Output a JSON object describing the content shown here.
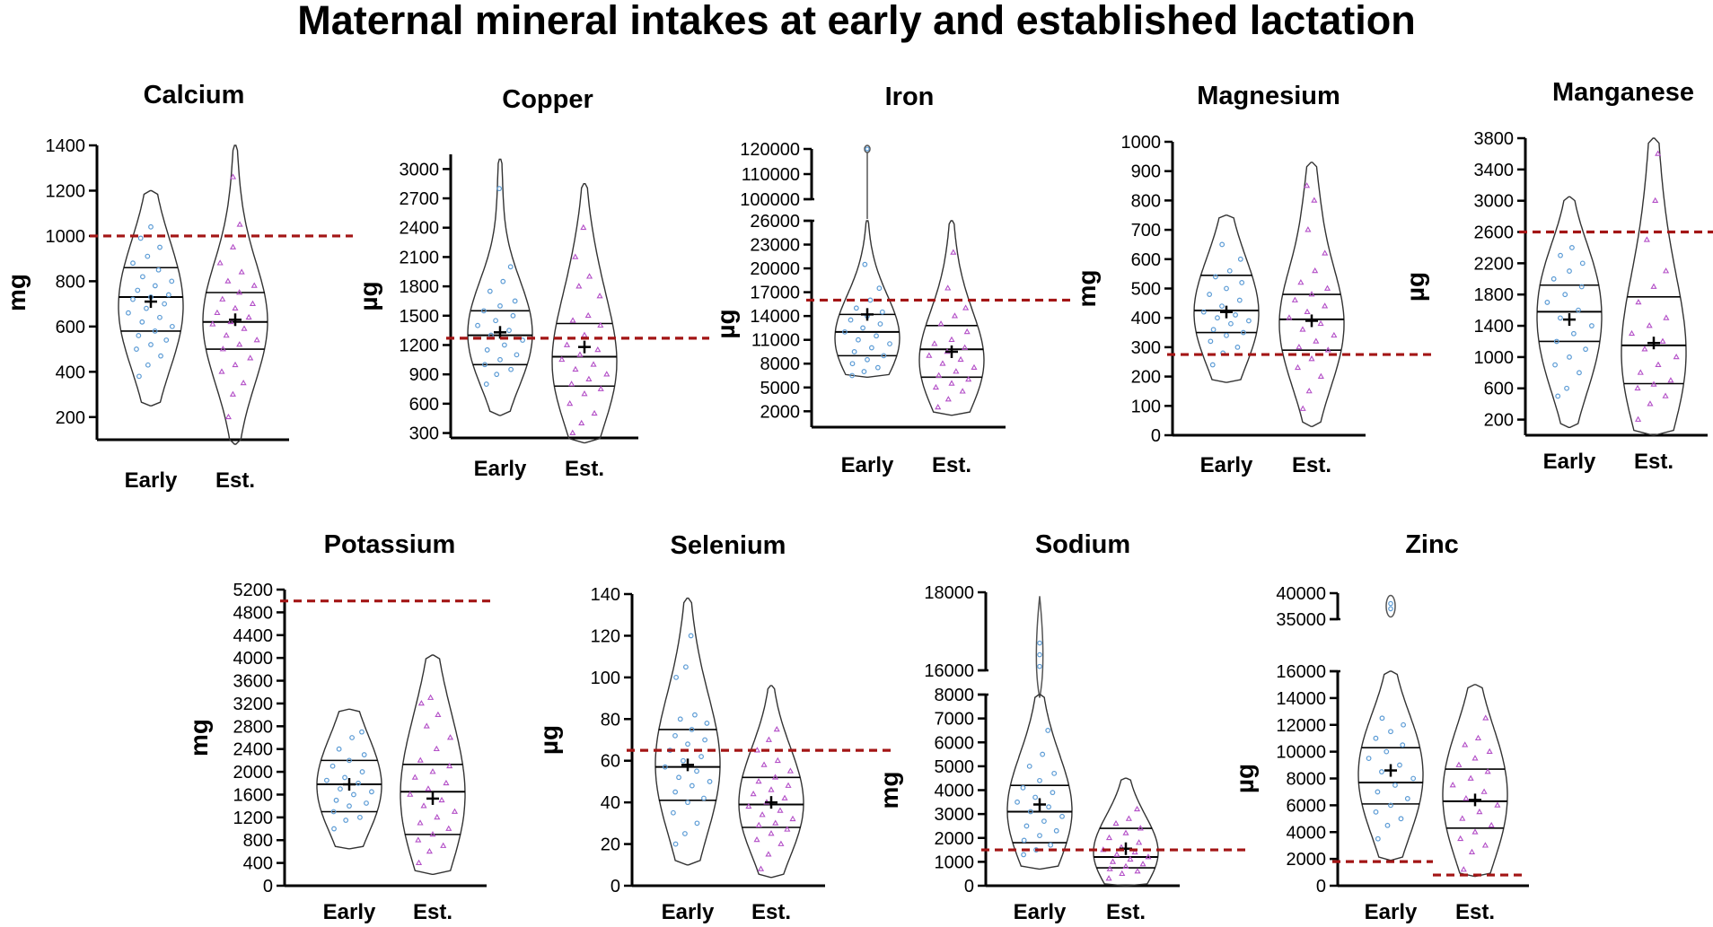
{
  "figure_title": "Maternal mineral intakes at early and established lactation",
  "colors": {
    "early_points": "#5b9bd5",
    "est_points": "#b34fc7",
    "reference_line": "#a31515",
    "axis": "#000000"
  },
  "chart_data": [
    {
      "type": "violin",
      "title": "Calcium",
      "ylabel": "mg",
      "categories": [
        "Early",
        "Est."
      ],
      "ylim": [
        100,
        1400
      ],
      "yticks": [
        200,
        400,
        600,
        800,
        1000,
        1200,
        1400
      ],
      "reference": 1000,
      "series": [
        {
          "name": "Early",
          "range": [
            250,
            1200
          ],
          "q1": 580,
          "median": 730,
          "q3": 860,
          "mean": 710,
          "points": [
            380,
            430,
            470,
            500,
            520,
            540,
            560,
            580,
            600,
            620,
            640,
            660,
            680,
            700,
            720,
            730,
            740,
            760,
            780,
            800,
            820,
            850,
            880,
            910,
            950,
            990,
            1040
          ]
        },
        {
          "name": "Est.",
          "range": [
            80,
            1400
          ],
          "q1": 500,
          "median": 620,
          "q3": 750,
          "mean": 630,
          "points": [
            200,
            300,
            350,
            400,
            430,
            460,
            500,
            520,
            540,
            560,
            590,
            610,
            620,
            640,
            660,
            680,
            700,
            720,
            750,
            780,
            800,
            840,
            880,
            950,
            1050,
            1260
          ]
        }
      ]
    },
    {
      "type": "violin",
      "title": "Copper",
      "ylabel": "µg",
      "categories": [
        "Early",
        "Est."
      ],
      "ylim": [
        250,
        3150
      ],
      "yticks": [
        300,
        600,
        900,
        1200,
        1500,
        1800,
        2100,
        2400,
        2700,
        3000
      ],
      "reference": 1270,
      "series": [
        {
          "name": "Early",
          "range": [
            480,
            3100
          ],
          "q1": 1000,
          "median": 1300,
          "q3": 1550,
          "mean": 1330,
          "points": [
            800,
            900,
            950,
            1000,
            1050,
            1100,
            1150,
            1200,
            1250,
            1300,
            1350,
            1400,
            1450,
            1500,
            1550,
            1600,
            1650,
            1750,
            1850,
            2000,
            2800
          ]
        },
        {
          "name": "Est.",
          "range": [
            200,
            2850
          ],
          "q1": 780,
          "median": 1080,
          "q3": 1420,
          "mean": 1180,
          "points": [
            300,
            400,
            500,
            600,
            700,
            750,
            800,
            850,
            900,
            950,
            1000,
            1050,
            1100,
            1150,
            1200,
            1300,
            1400,
            1450,
            1500,
            1700,
            1800,
            1900,
            2100,
            2400
          ]
        }
      ]
    },
    {
      "type": "violin",
      "title": "Iron",
      "ylabel": "µg",
      "categories": [
        "Early",
        "Est."
      ],
      "ylim": [
        0,
        26000
      ],
      "yticks": [
        2000,
        5000,
        8000,
        11000,
        14000,
        17000,
        20000,
        23000,
        26000
      ],
      "upper_ticks": [
        100000,
        110000,
        120000
      ],
      "reference": 16000,
      "series": [
        {
          "name": "Early",
          "range": [
            6300,
            26000
          ],
          "q1": 9000,
          "median": 12000,
          "q3": 14200,
          "mean": 14200,
          "points": [
            6500,
            7000,
            7500,
            8000,
            8500,
            9000,
            9500,
            10000,
            10500,
            11000,
            11500,
            12000,
            12500,
            13000,
            13500,
            14000,
            14500,
            15000,
            16000,
            17500,
            20500
          ]
        },
        {
          "name": "Est.",
          "range": [
            1500,
            26000
          ],
          "q1": 6300,
          "median": 9800,
          "q3": 12800,
          "mean": 9500,
          "points": [
            2500,
            3500,
            4500,
            5000,
            5500,
            6000,
            6500,
            7000,
            7500,
            8000,
            8500,
            9000,
            9500,
            10000,
            10500,
            11000,
            12000,
            13000,
            14000,
            15000,
            17500,
            22000
          ]
        }
      ]
    },
    {
      "type": "violin",
      "title": "Magnesium",
      "ylabel": "mg",
      "categories": [
        "Early",
        "Est."
      ],
      "ylim": [
        0,
        1000
      ],
      "yticks": [
        0,
        100,
        200,
        300,
        400,
        500,
        600,
        700,
        800,
        900,
        1000
      ],
      "reference": 275,
      "series": [
        {
          "name": "Early",
          "range": [
            180,
            750
          ],
          "q1": 350,
          "median": 425,
          "q3": 545,
          "mean": 420,
          "points": [
            240,
            280,
            300,
            320,
            340,
            350,
            360,
            380,
            390,
            400,
            410,
            420,
            440,
            460,
            480,
            500,
            520,
            540,
            560,
            600,
            650
          ]
        },
        {
          "name": "Est.",
          "range": [
            30,
            930
          ],
          "q1": 290,
          "median": 395,
          "q3": 480,
          "mean": 390,
          "points": [
            90,
            150,
            200,
            230,
            260,
            290,
            300,
            320,
            340,
            360,
            380,
            400,
            420,
            440,
            460,
            480,
            500,
            520,
            560,
            620,
            700,
            800,
            850
          ]
        }
      ]
    },
    {
      "type": "violin",
      "title": "Manganese",
      "ylabel": "µg",
      "categories": [
        "Early",
        "Est."
      ],
      "ylim": [
        0,
        3800
      ],
      "yticks": [
        200,
        600,
        1000,
        1400,
        1800,
        2200,
        2600,
        3000,
        3400,
        3800
      ],
      "reference": 2600,
      "series": [
        {
          "name": "Early",
          "range": [
            100,
            3050
          ],
          "q1": 1200,
          "median": 1580,
          "q3": 1920,
          "mean": 1480,
          "points": [
            500,
            600,
            800,
            900,
            1000,
            1100,
            1200,
            1300,
            1400,
            1500,
            1600,
            1700,
            1800,
            1900,
            2000,
            2100,
            2200,
            2300,
            2400
          ]
        },
        {
          "name": "Est.",
          "range": [
            0,
            3800
          ],
          "q1": 660,
          "median": 1150,
          "q3": 1770,
          "mean": 1180,
          "points": [
            200,
            400,
            500,
            600,
            650,
            700,
            800,
            900,
            1000,
            1100,
            1200,
            1300,
            1400,
            1500,
            1700,
            1900,
            2100,
            2500,
            3000,
            3600
          ]
        }
      ]
    },
    {
      "type": "violin",
      "title": "Potassium",
      "ylabel": "mg",
      "categories": [
        "Early",
        "Est."
      ],
      "ylim": [
        0,
        5200
      ],
      "yticks": [
        0,
        400,
        800,
        1200,
        1600,
        2000,
        2400,
        2800,
        3200,
        3600,
        4000,
        4400,
        4800,
        5200
      ],
      "reference": 5000,
      "series": [
        {
          "name": "Early",
          "range": [
            650,
            3100
          ],
          "q1": 1300,
          "median": 1780,
          "q3": 2200,
          "mean": 1780,
          "points": [
            1000,
            1150,
            1200,
            1300,
            1400,
            1450,
            1500,
            1600,
            1650,
            1700,
            1800,
            1850,
            1900,
            2000,
            2100,
            2200,
            2300,
            2400,
            2600,
            2700
          ]
        },
        {
          "name": "Est.",
          "range": [
            200,
            4050
          ],
          "q1": 900,
          "median": 1650,
          "q3": 2130,
          "mean": 1530,
          "points": [
            400,
            600,
            700,
            800,
            900,
            1000,
            1100,
            1200,
            1300,
            1400,
            1500,
            1600,
            1700,
            1800,
            1900,
            2000,
            2100,
            2200,
            2400,
            2600,
            2800,
            3000,
            3200,
            3300
          ]
        }
      ]
    },
    {
      "type": "violin",
      "title": "Selenium",
      "ylabel": "µg",
      "categories": [
        "Early",
        "Est."
      ],
      "ylim": [
        0,
        140
      ],
      "yticks": [
        0,
        20,
        40,
        60,
        80,
        100,
        120,
        140
      ],
      "reference": 65,
      "series": [
        {
          "name": "Early",
          "range": [
            10,
            138
          ],
          "q1": 41,
          "median": 57,
          "q3": 75,
          "mean": 58,
          "points": [
            20,
            25,
            30,
            35,
            40,
            42,
            45,
            48,
            50,
            52,
            55,
            57,
            60,
            62,
            65,
            68,
            70,
            72,
            75,
            78,
            80,
            82,
            100,
            105,
            120
          ]
        },
        {
          "name": "Est.",
          "range": [
            4,
            96
          ],
          "q1": 28,
          "median": 39,
          "q3": 52,
          "mean": 40,
          "points": [
            8,
            15,
            20,
            22,
            25,
            27,
            29,
            30,
            32,
            34,
            36,
            38,
            40,
            42,
            44,
            46,
            48,
            50,
            52,
            55,
            58,
            60,
            65,
            70,
            75
          ]
        }
      ]
    },
    {
      "type": "violin",
      "title": "Sodium",
      "ylabel": "mg",
      "categories": [
        "Early",
        "Est."
      ],
      "ylim": [
        0,
        8000
      ],
      "yticks": [
        0,
        1000,
        2000,
        3000,
        4000,
        5000,
        6000,
        7000,
        8000
      ],
      "upper_ticks": [
        16000,
        18000
      ],
      "reference": 1500,
      "series": [
        {
          "name": "Early",
          "range": [
            700,
            8000
          ],
          "q1": 1800,
          "median": 3100,
          "q3": 4200,
          "mean": 3400,
          "points": [
            1300,
            1500,
            1700,
            1900,
            2100,
            2300,
            2500,
            2700,
            2900,
            3100,
            3300,
            3500,
            3700,
            3900,
            4100,
            4400,
            4700,
            5000,
            5500,
            6500
          ]
        },
        {
          "name": "Est.",
          "range": [
            0,
            4500
          ],
          "q1": 750,
          "median": 1200,
          "q3": 2400,
          "mean": 1550,
          "points": [
            300,
            500,
            600,
            700,
            800,
            900,
            1000,
            1100,
            1200,
            1300,
            1400,
            1500,
            1600,
            1800,
            2000,
            2200,
            2400,
            2600,
            2800,
            3200
          ]
        }
      ]
    },
    {
      "type": "violin",
      "title": "Zinc",
      "ylabel": "µg",
      "categories": [
        "Early",
        "Est."
      ],
      "ylim": [
        0,
        16000
      ],
      "yticks": [
        0,
        2000,
        4000,
        6000,
        8000,
        10000,
        12000,
        14000,
        16000
      ],
      "upper_ticks": [
        35000,
        40000
      ],
      "reference_early": 1800,
      "reference_est": 800,
      "series": [
        {
          "name": "Early",
          "range": [
            1900,
            16000
          ],
          "q1": 6100,
          "median": 7700,
          "q3": 10300,
          "mean": 8600,
          "points": [
            3500,
            4500,
            5000,
            5500,
            6000,
            6500,
            7000,
            7500,
            8000,
            8500,
            9000,
            9500,
            10000,
            10500,
            11000,
            11500,
            12000,
            12500
          ]
        },
        {
          "name": "Est.",
          "range": [
            700,
            15000
          ],
          "q1": 4300,
          "median": 6300,
          "q3": 8700,
          "mean": 6400,
          "points": [
            1200,
            2500,
            3000,
            3500,
            4000,
            4500,
            5000,
            5500,
            6000,
            6500,
            7000,
            7500,
            8000,
            8500,
            9000,
            9500,
            10000,
            10500,
            11000,
            12500
          ]
        }
      ]
    }
  ]
}
